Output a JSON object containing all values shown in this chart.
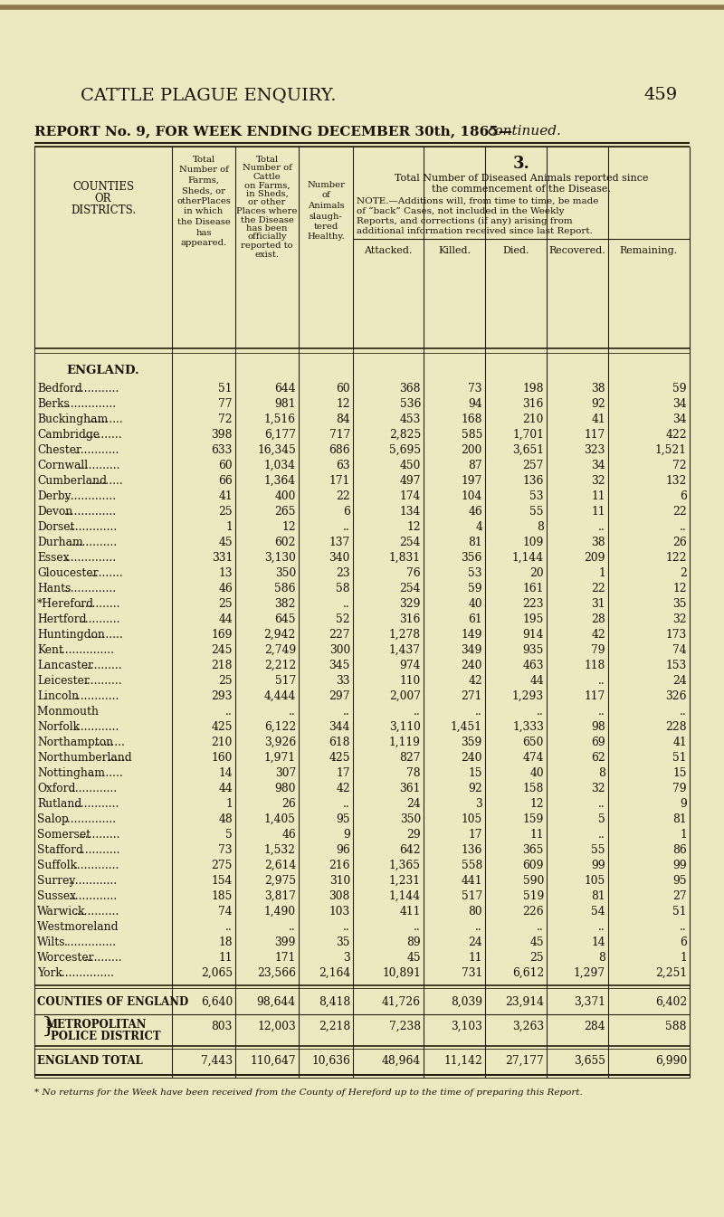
{
  "page_title": "CATTLE PLAGUE ENQUIRY.",
  "page_number": "459",
  "report_title": "REPORT No. 9, FOR WEEK ENDING DECEMBER 30th, 1865—",
  "report_title_italic": "continued.",
  "header_section3": "3.",
  "sub_headers": [
    "Attacked.",
    "Killed.",
    "Died.",
    "Recovered.",
    "Remaining."
  ],
  "section_england": "ENGLAND.",
  "rows": [
    [
      "Bedford",
      "51",
      "644",
      "60",
      "368",
      "73",
      "198",
      "38",
      "59"
    ],
    [
      "Berks",
      "77",
      "981",
      "12",
      "536",
      "94",
      "316",
      "92",
      "34"
    ],
    [
      "Buckingham",
      "72",
      "1,516",
      "84",
      "453",
      "168",
      "210",
      "41",
      "34"
    ],
    [
      "Cambridge",
      "398",
      "6,177",
      "717",
      "2,825",
      "585",
      "1,701",
      "117",
      "422"
    ],
    [
      "Chester",
      "633",
      "16,345",
      "686",
      "5,695",
      "200",
      "3,651",
      "323",
      "1,521"
    ],
    [
      "Cornwall",
      "60",
      "1,034",
      "63",
      "450",
      "87",
      "257",
      "34",
      "72"
    ],
    [
      "Cumberland",
      "66",
      "1,364",
      "171",
      "497",
      "197",
      "136",
      "32",
      "132"
    ],
    [
      "Derby",
      "41",
      "400",
      "22",
      "174",
      "104",
      "53",
      "11",
      "6"
    ],
    [
      "Devon",
      "25",
      "265",
      "6",
      "134",
      "46",
      "55",
      "11",
      "22"
    ],
    [
      "Dorset",
      "1",
      "12",
      "..",
      "12",
      "4",
      "8",
      "..",
      ".."
    ],
    [
      "Durham",
      "45",
      "602",
      "137",
      "254",
      "81",
      "109",
      "38",
      "26"
    ],
    [
      "Essex",
      "331",
      "3,130",
      "340",
      "1,831",
      "356",
      "1,144",
      "209",
      "122"
    ],
    [
      "Gloucester",
      "13",
      "350",
      "23",
      "76",
      "53",
      "20",
      "1",
      "2"
    ],
    [
      "Hants",
      "46",
      "586",
      "58",
      "254",
      "59",
      "161",
      "22",
      "12"
    ],
    [
      "*Hereford",
      "25",
      "382",
      "..",
      "329",
      "40",
      "223",
      "31",
      "35"
    ],
    [
      "Hertford",
      "44",
      "645",
      "52",
      "316",
      "61",
      "195",
      "28",
      "32"
    ],
    [
      "Huntingdon",
      "169",
      "2,942",
      "227",
      "1,278",
      "149",
      "914",
      "42",
      "173"
    ],
    [
      "Kent",
      "245",
      "2,749",
      "300",
      "1,437",
      "349",
      "935",
      "79",
      "74"
    ],
    [
      "Lancaster",
      "218",
      "2,212",
      "345",
      "974",
      "240",
      "463",
      "118",
      "153"
    ],
    [
      "Leicester",
      "25",
      "517",
      "33",
      "110",
      "42",
      "44",
      "..",
      "24"
    ],
    [
      "Lincoln",
      "293",
      "4,444",
      "297",
      "2,007",
      "271",
      "1,293",
      "117",
      "326"
    ],
    [
      "Monmouth",
      "..",
      "..",
      "..",
      "..",
      "..",
      "..",
      "..",
      ".."
    ],
    [
      "Norfolk",
      "425",
      "6,122",
      "344",
      "3,110",
      "1,451",
      "1,333",
      "98",
      "228"
    ],
    [
      "Northampton",
      "210",
      "3,926",
      "618",
      "1,119",
      "359",
      "650",
      "69",
      "41"
    ],
    [
      "Northumberland",
      "160",
      "1,971",
      "425",
      "827",
      "240",
      "474",
      "62",
      "51"
    ],
    [
      "Nottingham",
      "14",
      "307",
      "17",
      "78",
      "15",
      "40",
      "8",
      "15"
    ],
    [
      "Oxford",
      "44",
      "980",
      "42",
      "361",
      "92",
      "158",
      "32",
      "79"
    ],
    [
      "Rutland",
      "1",
      "26",
      "..",
      "24",
      "3",
      "12",
      "..",
      "9"
    ],
    [
      "Salop",
      "48",
      "1,405",
      "95",
      "350",
      "105",
      "159",
      "5",
      "81"
    ],
    [
      "Somerset",
      "5",
      "46",
      "9",
      "29",
      "17",
      "11",
      "..",
      "1"
    ],
    [
      "Stafford",
      "73",
      "1,532",
      "96",
      "642",
      "136",
      "365",
      "55",
      "86"
    ],
    [
      "Suffolk",
      "275",
      "2,614",
      "216",
      "1,365",
      "558",
      "609",
      "99",
      "99"
    ],
    [
      "Surrey",
      "154",
      "2,975",
      "310",
      "1,231",
      "441",
      "590",
      "105",
      "95"
    ],
    [
      "Sussex",
      "185",
      "3,817",
      "308",
      "1,144",
      "517",
      "519",
      "81",
      "27"
    ],
    [
      "Warwick",
      "74",
      "1,490",
      "103",
      "411",
      "80",
      "226",
      "54",
      "51"
    ],
    [
      "Westmoreland",
      "..",
      "..",
      "..",
      "..",
      "..",
      "..",
      "..",
      ".."
    ],
    [
      "Wilts",
      "18",
      "399",
      "35",
      "89",
      "24",
      "45",
      "14",
      "6"
    ],
    [
      "Worcester",
      "11",
      "171",
      "3",
      "45",
      "11",
      "25",
      "8",
      "1"
    ],
    [
      "York",
      "2,065",
      "23,566",
      "2,164",
      "10,891",
      "731",
      "6,612",
      "1,297",
      "2,251"
    ]
  ],
  "summary_rows": [
    [
      "COUNTIES OF ENGLAND",
      "6,640",
      "98,644",
      "8,418",
      "41,726",
      "8,039",
      "23,914",
      "3,371",
      "6,402"
    ],
    [
      "METROPOLITAN\nPOLICE DISTRICT",
      "803",
      "12,003",
      "2,218",
      "7,238",
      "3,103",
      "3,263",
      "284",
      "588"
    ],
    [
      "ENGLAND TOTAL",
      "7,443",
      "110,647",
      "10,636",
      "48,964",
      "11,142",
      "27,177",
      "3,655",
      "6,990"
    ]
  ],
  "footnote": "* No returns for the Week have been received from the County of Hereford up to the time of preparing this Report.",
  "bg_color": "#ede8c0",
  "text_color": "#1a1208",
  "line_color": "#2a2010"
}
